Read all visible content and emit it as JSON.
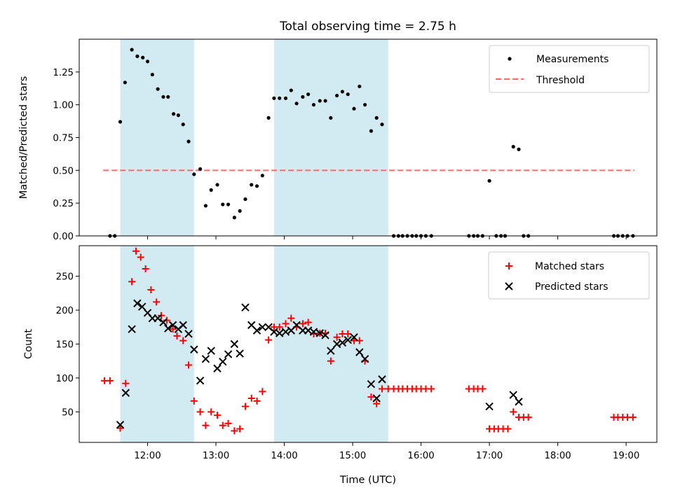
{
  "colors": {
    "shade": "#add8e6",
    "measurement": "#000000",
    "threshold": "#ff6b6b",
    "matched": "#ff0000",
    "predicted": "#000000"
  },
  "chart_data": [
    {
      "type": "scatter",
      "title": "Total observing time = 2.75 h",
      "ylabel": "Matched/Predicted stars",
      "xlabel": "",
      "x_unit": "hours (UTC)",
      "xlim": [
        11.0,
        19.45
      ],
      "ylim": [
        0,
        1.5
      ],
      "yticks": [
        0.0,
        0.25,
        0.5,
        0.75,
        1.0,
        1.25
      ],
      "ytick_labels": [
        "0.00",
        "0.25",
        "0.50",
        "0.75",
        "1.00",
        "1.25"
      ],
      "shaded_spans": [
        [
          11.6,
          12.68
        ],
        [
          13.85,
          15.52
        ]
      ],
      "threshold": {
        "value": 0.5,
        "x_range": [
          11.35,
          19.12
        ]
      },
      "legend": {
        "position": "upper right",
        "entries": [
          "Measurements",
          "Threshold"
        ]
      },
      "grid": false,
      "series": [
        {
          "name": "Measurements",
          "points": [
            [
              11.45,
              0
            ],
            [
              11.52,
              0
            ],
            [
              11.6,
              0.87
            ],
            [
              11.67,
              1.17
            ],
            [
              11.77,
              1.42
            ],
            [
              11.85,
              1.37
            ],
            [
              11.93,
              1.36
            ],
            [
              12.0,
              1.33
            ],
            [
              12.07,
              1.23
            ],
            [
              12.15,
              1.12
            ],
            [
              12.23,
              1.06
            ],
            [
              12.3,
              1.06
            ],
            [
              12.38,
              0.93
            ],
            [
              12.45,
              0.92
            ],
            [
              12.52,
              0.85
            ],
            [
              12.6,
              0.72
            ],
            [
              12.68,
              0.47
            ],
            [
              12.77,
              0.51
            ],
            [
              12.85,
              0.23
            ],
            [
              12.93,
              0.35
            ],
            [
              13.02,
              0.39
            ],
            [
              13.1,
              0.24
            ],
            [
              13.18,
              0.24
            ],
            [
              13.27,
              0.14
            ],
            [
              13.35,
              0.19
            ],
            [
              13.43,
              0.28
            ],
            [
              13.52,
              0.39
            ],
            [
              13.6,
              0.38
            ],
            [
              13.68,
              0.46
            ],
            [
              13.77,
              0.9
            ],
            [
              13.85,
              1.05
            ],
            [
              13.93,
              1.05
            ],
            [
              14.02,
              1.05
            ],
            [
              14.1,
              1.11
            ],
            [
              14.18,
              1.01
            ],
            [
              14.27,
              1.06
            ],
            [
              14.35,
              1.08
            ],
            [
              14.43,
              1.0
            ],
            [
              14.52,
              1.03
            ],
            [
              14.6,
              1.03
            ],
            [
              14.68,
              0.9
            ],
            [
              14.77,
              1.07
            ],
            [
              14.85,
              1.1
            ],
            [
              14.93,
              1.08
            ],
            [
              15.02,
              0.97
            ],
            [
              15.1,
              1.14
            ],
            [
              15.18,
              1.0
            ],
            [
              15.27,
              0.8
            ],
            [
              15.35,
              0.9
            ],
            [
              15.43,
              0.85
            ],
            [
              15.6,
              0
            ],
            [
              15.67,
              0
            ],
            [
              15.73,
              0
            ],
            [
              15.8,
              0
            ],
            [
              15.87,
              0
            ],
            [
              15.93,
              0
            ],
            [
              16.0,
              0
            ],
            [
              16.07,
              0
            ],
            [
              16.15,
              0
            ],
            [
              16.7,
              0
            ],
            [
              16.77,
              0
            ],
            [
              16.83,
              0
            ],
            [
              16.9,
              0
            ],
            [
              17.0,
              0.42
            ],
            [
              17.1,
              0
            ],
            [
              17.17,
              0
            ],
            [
              17.23,
              0
            ],
            [
              17.35,
              0.68
            ],
            [
              17.43,
              0.66
            ],
            [
              17.5,
              0
            ],
            [
              17.57,
              0
            ],
            [
              18.82,
              0
            ],
            [
              18.88,
              0
            ],
            [
              18.95,
              0
            ],
            [
              19.02,
              0
            ],
            [
              19.1,
              0
            ]
          ]
        }
      ]
    },
    {
      "type": "scatter",
      "ylabel": "Count",
      "xlabel": "Time (UTC)",
      "xlim": [
        11.0,
        19.45
      ],
      "ylim": [
        5,
        295
      ],
      "yticks": [
        50,
        100,
        150,
        200,
        250
      ],
      "xticks": [
        12,
        13,
        14,
        15,
        16,
        17,
        18,
        19
      ],
      "xtick_labels": [
        "12:00",
        "13:00",
        "14:00",
        "15:00",
        "16:00",
        "17:00",
        "18:00",
        "19:00"
      ],
      "shaded_spans": [
        [
          11.6,
          12.68
        ],
        [
          13.85,
          15.52
        ]
      ],
      "legend": {
        "position": "upper right",
        "entries": [
          "Matched stars",
          "Predicted stars"
        ]
      },
      "grid": false,
      "series": [
        {
          "name": "Matched stars",
          "marker": "+",
          "points": [
            [
              11.37,
              96
            ],
            [
              11.45,
              96
            ],
            [
              11.6,
              26
            ],
            [
              11.68,
              92
            ],
            [
              11.77,
              242
            ],
            [
              11.83,
              287
            ],
            [
              11.9,
              278
            ],
            [
              11.97,
              261
            ],
            [
              12.05,
              230
            ],
            [
              12.13,
              212
            ],
            [
              12.2,
              192
            ],
            [
              12.28,
              185
            ],
            [
              12.37,
              172
            ],
            [
              12.43,
              162
            ],
            [
              12.52,
              155
            ],
            [
              12.6,
              119
            ],
            [
              12.68,
              66
            ],
            [
              12.77,
              50
            ],
            [
              12.85,
              30
            ],
            [
              12.93,
              50
            ],
            [
              13.02,
              45
            ],
            [
              13.1,
              30
            ],
            [
              13.18,
              33
            ],
            [
              13.27,
              22
            ],
            [
              13.35,
              25
            ],
            [
              13.43,
              58
            ],
            [
              13.52,
              70
            ],
            [
              13.6,
              66
            ],
            [
              13.68,
              80
            ],
            [
              13.77,
              156
            ],
            [
              13.85,
              175
            ],
            [
              13.93,
              175
            ],
            [
              14.02,
              180
            ],
            [
              14.1,
              188
            ],
            [
              14.18,
              175
            ],
            [
              14.27,
              180
            ],
            [
              14.35,
              182
            ],
            [
              14.43,
              165
            ],
            [
              14.52,
              166
            ],
            [
              14.6,
              166
            ],
            [
              14.68,
              125
            ],
            [
              14.77,
              160
            ],
            [
              14.85,
              165
            ],
            [
              14.93,
              165
            ],
            [
              15.02,
              155
            ],
            [
              15.1,
              155
            ],
            [
              15.18,
              125
            ],
            [
              15.27,
              72
            ],
            [
              15.35,
              62
            ],
            [
              15.43,
              84
            ],
            [
              15.52,
              84
            ],
            [
              15.6,
              84
            ],
            [
              15.67,
              84
            ],
            [
              15.73,
              84
            ],
            [
              15.8,
              84
            ],
            [
              15.87,
              84
            ],
            [
              15.93,
              84
            ],
            [
              16.0,
              84
            ],
            [
              16.07,
              84
            ],
            [
              16.15,
              84
            ],
            [
              16.7,
              84
            ],
            [
              16.77,
              84
            ],
            [
              16.83,
              84
            ],
            [
              16.9,
              84
            ],
            [
              17.0,
              25
            ],
            [
              17.07,
              25
            ],
            [
              17.13,
              25
            ],
            [
              17.2,
              25
            ],
            [
              17.27,
              25
            ],
            [
              17.35,
              50
            ],
            [
              17.43,
              42
            ],
            [
              17.5,
              42
            ],
            [
              17.57,
              42
            ],
            [
              18.82,
              42
            ],
            [
              18.88,
              42
            ],
            [
              18.95,
              42
            ],
            [
              19.02,
              42
            ],
            [
              19.1,
              42
            ]
          ]
        },
        {
          "name": "Predicted stars",
          "marker": "x",
          "points": [
            [
              11.6,
              31
            ],
            [
              11.68,
              78
            ],
            [
              11.77,
              172
            ],
            [
              11.85,
              210
            ],
            [
              11.92,
              205
            ],
            [
              12.0,
              196
            ],
            [
              12.07,
              188
            ],
            [
              12.15,
              188
            ],
            [
              12.23,
              182
            ],
            [
              12.3,
              173
            ],
            [
              12.37,
              178
            ],
            [
              12.45,
              172
            ],
            [
              12.52,
              178
            ],
            [
              12.6,
              165
            ],
            [
              12.68,
              142
            ],
            [
              12.77,
              96
            ],
            [
              12.85,
              128
            ],
            [
              12.93,
              140
            ],
            [
              13.02,
              114
            ],
            [
              13.1,
              124
            ],
            [
              13.18,
              135
            ],
            [
              13.27,
              150
            ],
            [
              13.35,
              136
            ],
            [
              13.43,
              204
            ],
            [
              13.52,
              178
            ],
            [
              13.6,
              170
            ],
            [
              13.68,
              175
            ],
            [
              13.77,
              175
            ],
            [
              13.85,
              168
            ],
            [
              13.93,
              166
            ],
            [
              14.02,
              168
            ],
            [
              14.1,
              170
            ],
            [
              14.18,
              178
            ],
            [
              14.27,
              170
            ],
            [
              14.35,
              170
            ],
            [
              14.43,
              168
            ],
            [
              14.52,
              166
            ],
            [
              14.6,
              163
            ],
            [
              14.68,
              140
            ],
            [
              14.77,
              150
            ],
            [
              14.85,
              152
            ],
            [
              14.93,
              156
            ],
            [
              15.02,
              160
            ],
            [
              15.1,
              138
            ],
            [
              15.18,
              128
            ],
            [
              15.27,
              91
            ],
            [
              15.35,
              70
            ],
            [
              15.43,
              98
            ],
            [
              17.0,
              58
            ],
            [
              17.35,
              75
            ],
            [
              17.43,
              65
            ]
          ]
        }
      ]
    }
  ]
}
